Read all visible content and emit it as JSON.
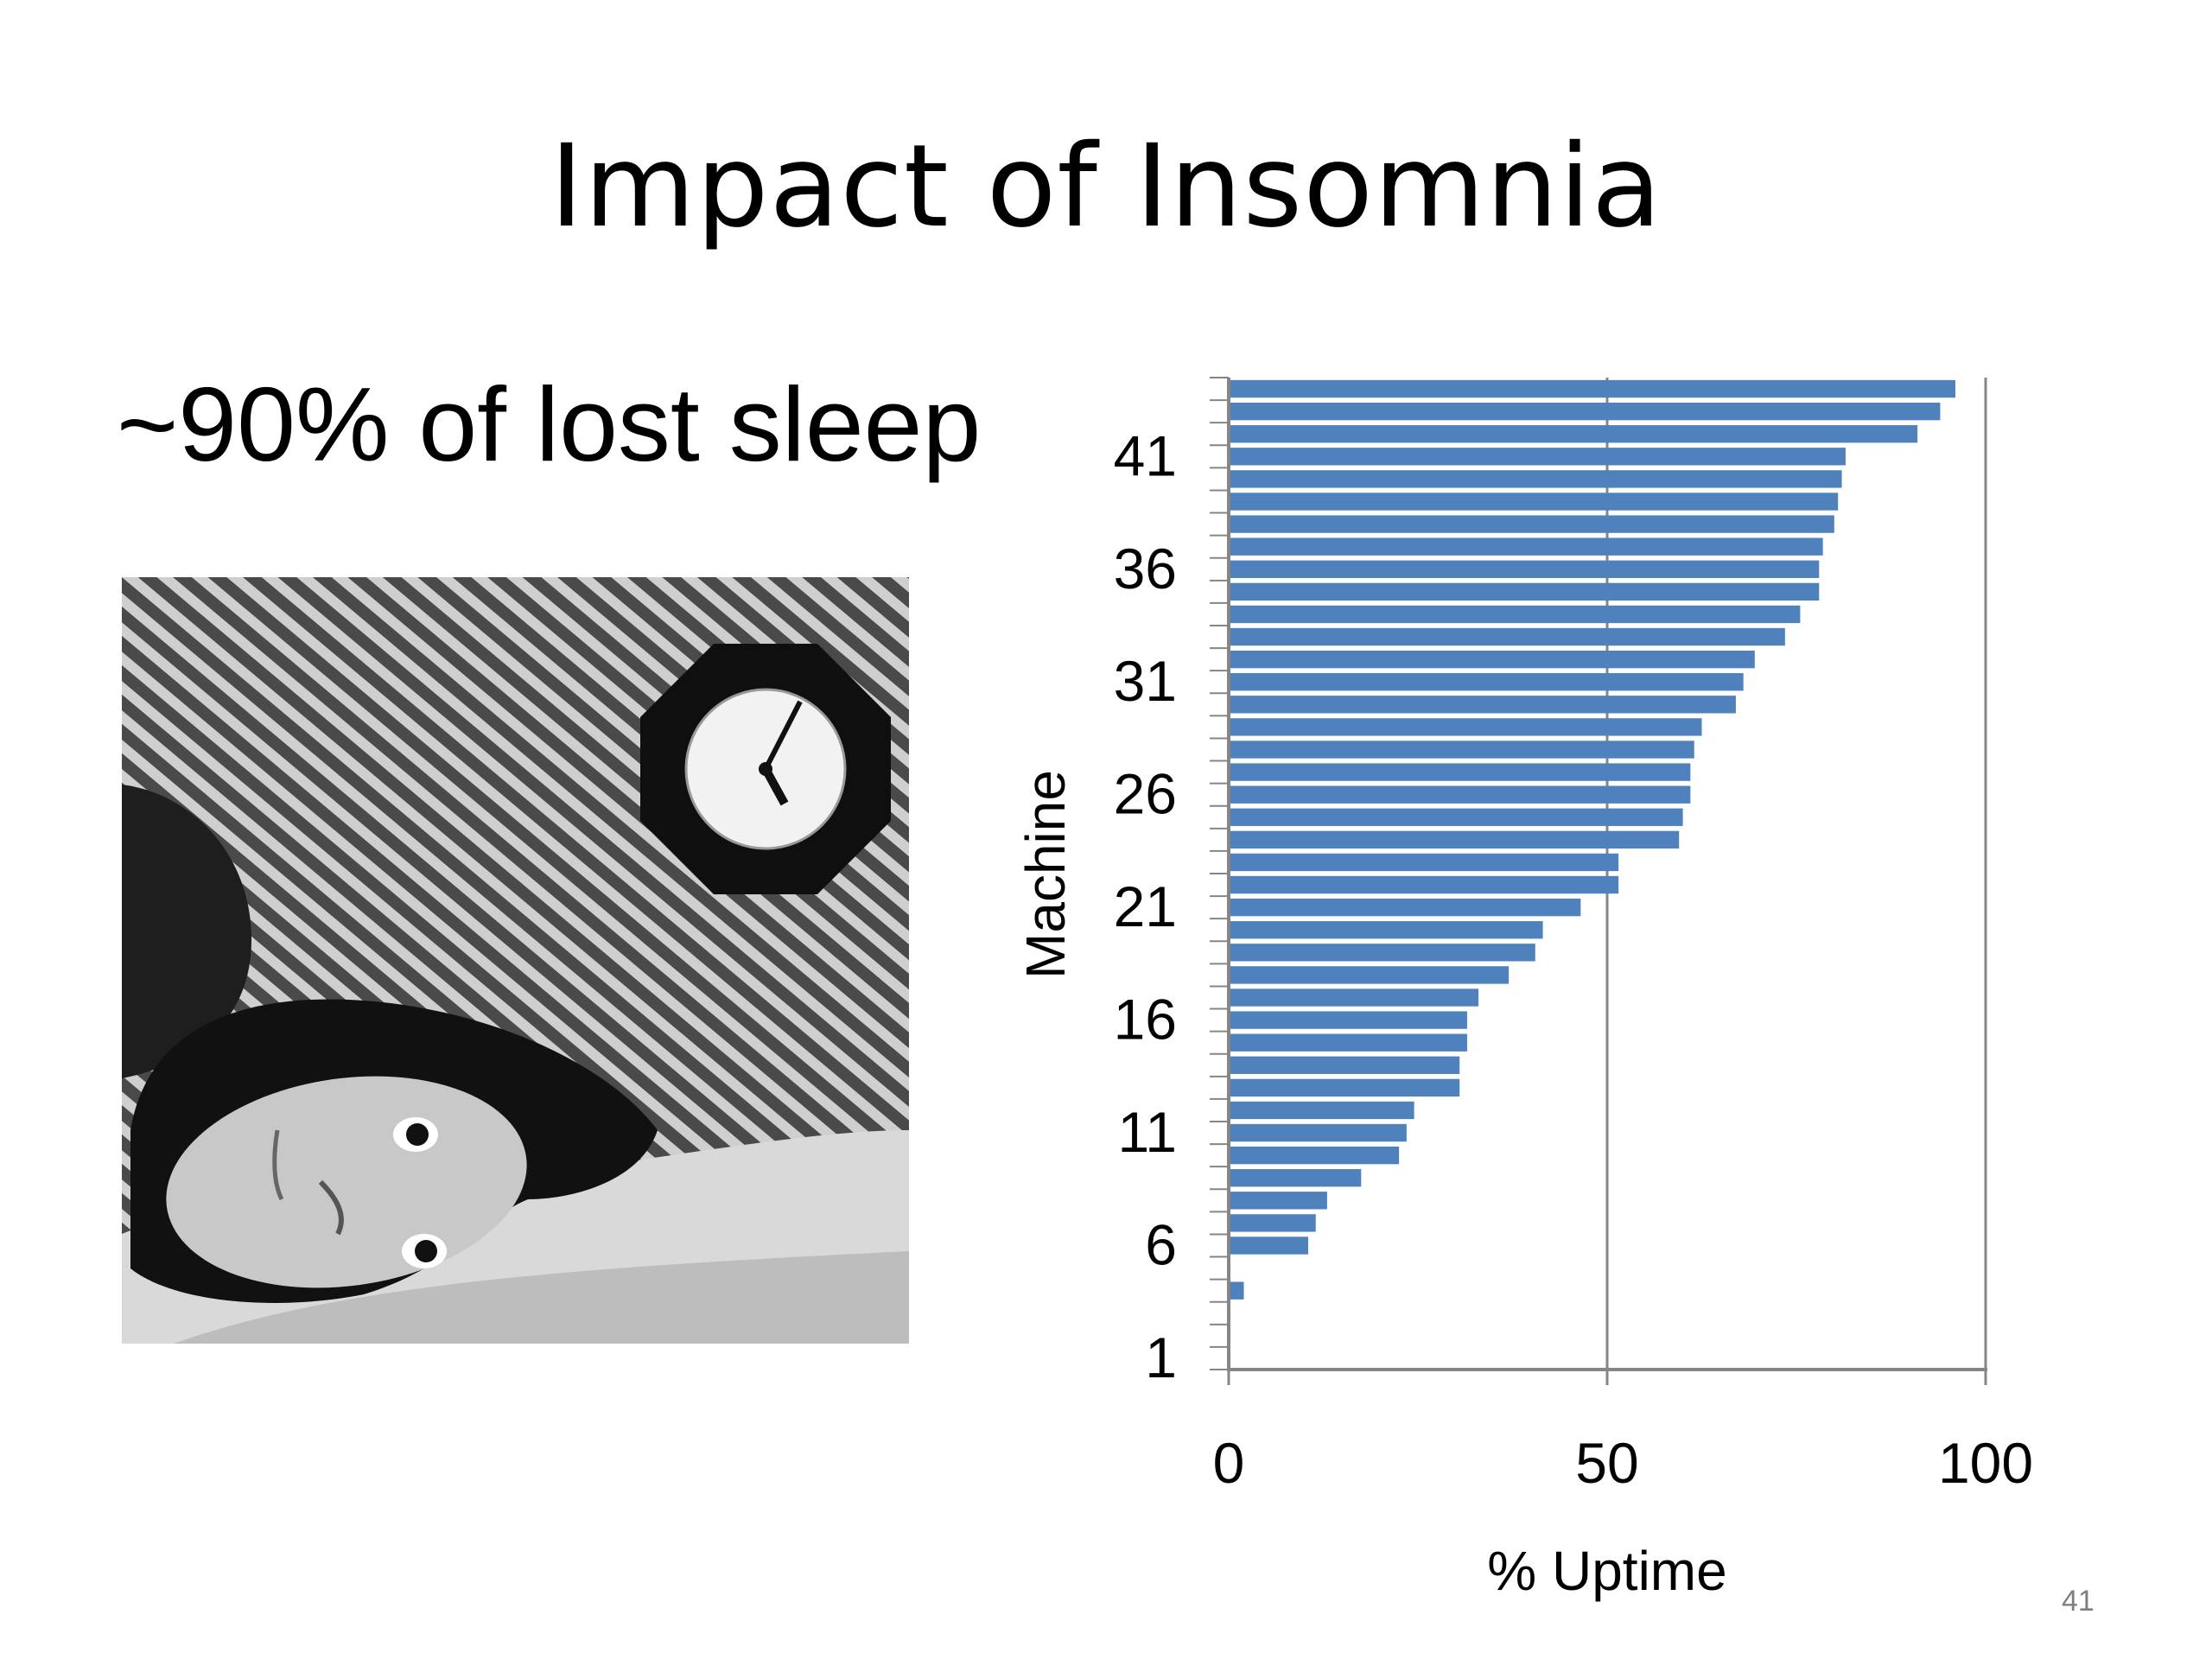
{
  "slide": {
    "title": "Impact of Insomnia",
    "bullet": "~90% of lost sleep",
    "page_number": "41"
  },
  "photo": {
    "description_icon": "insomnia-photo-icon"
  },
  "colors": {
    "bar": "#4f81bd",
    "axis": "#868686",
    "text": "#000000"
  },
  "chart_data": {
    "type": "bar",
    "orientation": "horizontal",
    "title": "",
    "xlabel": "% Uptime",
    "ylabel": "Machine",
    "xlim": [
      0,
      100
    ],
    "xticks": [
      0,
      50,
      100
    ],
    "yticks": [
      1,
      6,
      11,
      16,
      21,
      26,
      31,
      36,
      41
    ],
    "grid": "vertical gridline at 50",
    "legend": "none",
    "categories": [
      1,
      2,
      3,
      4,
      5,
      6,
      7,
      8,
      9,
      10,
      11,
      12,
      13,
      14,
      15,
      16,
      17,
      18,
      19,
      20,
      21,
      22,
      23,
      24,
      25,
      26,
      27,
      28,
      29,
      30,
      31,
      32,
      33,
      34,
      35,
      36,
      37,
      38,
      39,
      40,
      41,
      42,
      43,
      44
    ],
    "values": [
      0,
      0,
      0,
      2,
      0,
      10.5,
      11.5,
      13,
      17.5,
      22.5,
      23.5,
      24.5,
      30.5,
      30.5,
      31.5,
      31.5,
      33,
      37,
      40.5,
      41.5,
      46.5,
      51.5,
      51.5,
      59.5,
      60,
      61,
      61,
      61.5,
      62.5,
      67,
      68,
      69.5,
      73.5,
      75.5,
      78,
      78,
      78.5,
      80,
      80.5,
      81,
      81.5,
      91,
      94,
      96
    ]
  }
}
